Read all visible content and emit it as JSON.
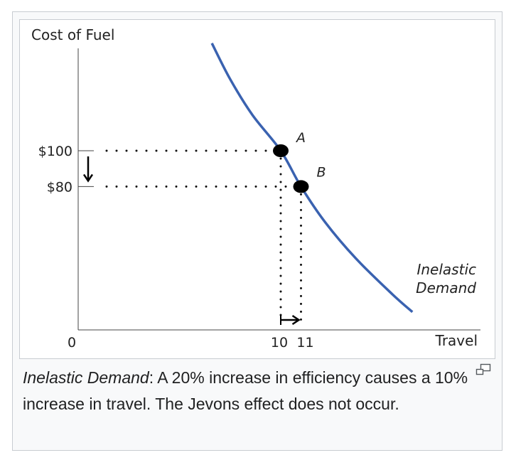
{
  "chart_data": {
    "type": "line",
    "ylabel": "Cost of Fuel",
    "xlabel": "Travel",
    "origin_label": "0",
    "y_ticks": [
      {
        "value": 100,
        "label": "$100"
      },
      {
        "value": 80,
        "label": "$80"
      }
    ],
    "x_ticks": [
      {
        "value": 10,
        "label": "10"
      },
      {
        "value": 11,
        "label": "11"
      }
    ],
    "series": [
      {
        "name": "Inelastic Demand",
        "label_lines": [
          "Inelastic",
          "Demand"
        ],
        "color": "#3a62b0",
        "points": [
          [
            6.6,
            160
          ],
          [
            7.5,
            140
          ],
          [
            8.6,
            120
          ],
          [
            10,
            100
          ],
          [
            11,
            80
          ],
          [
            12.2,
            60
          ],
          [
            13.7,
            40
          ],
          [
            15.5,
            20
          ],
          [
            16.5,
            10
          ]
        ]
      }
    ],
    "points": [
      {
        "label": "A",
        "x": 10,
        "y": 100
      },
      {
        "label": "B",
        "x": 11,
        "y": 80
      }
    ],
    "arrows": {
      "y_direction": "down",
      "x_direction": "right"
    },
    "xlim": [
      0,
      18
    ],
    "ylim": [
      0,
      170
    ]
  },
  "caption": {
    "title": "Inelastic Demand",
    "text": ": A 20% increase in efficiency causes a 10% increase in travel. The Jevons effect does not occur."
  },
  "icons": {
    "enlarge": "magnify-icon"
  }
}
